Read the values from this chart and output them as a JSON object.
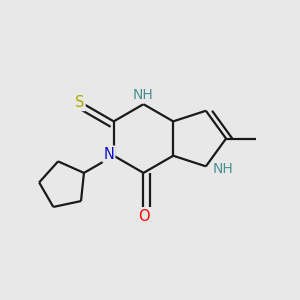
{
  "background_color": "#e8e8e8",
  "atom_colors": {
    "N_blue": "#1010cc",
    "O_red": "#ff0000",
    "S_yellow": "#aaaa00",
    "C_black": "#1a1a1a",
    "NH_teal": "#4a9090"
  },
  "bond_color": "#1a1a1a",
  "bond_width": 1.6,
  "figsize": [
    3.0,
    3.0
  ],
  "dpi": 100,
  "xlim": [
    -0.9,
    0.9
  ],
  "ylim": [
    -0.9,
    0.9
  ],
  "font_size": 10.5
}
